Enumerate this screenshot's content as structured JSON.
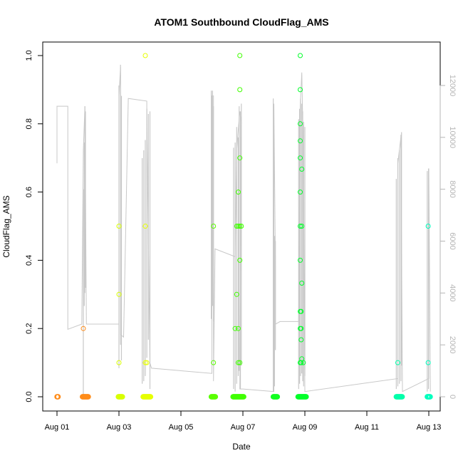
{
  "chart_data": {
    "type": "scatter",
    "title": "ATOM1 Southbound CloudFlag_AMS",
    "xlabel": "Date",
    "ylabel": "CloudFlag_AMS",
    "ylim": [
      0,
      1
    ],
    "yticks": [
      0.0,
      0.2,
      0.4,
      0.6,
      0.8,
      1.0
    ],
    "ytick_labels": [
      "0.0",
      "0.2",
      "0.4",
      "0.6",
      "0.8",
      "1.0"
    ],
    "x_axis": {
      "type": "date",
      "range_days": [
        0,
        12.3
      ],
      "ticks": [
        {
          "day": 0,
          "label": "Aug 01"
        },
        {
          "day": 2,
          "label": "Aug 03"
        },
        {
          "day": 4,
          "label": "Aug 05"
        },
        {
          "day": 6,
          "label": "Aug 07"
        },
        {
          "day": 8,
          "label": "Aug 09"
        },
        {
          "day": 10,
          "label": "Aug 11"
        },
        {
          "day": 12,
          "label": "Aug 13"
        }
      ]
    },
    "y2_axis": {
      "color": "#b5b5b5",
      "ylim": [
        0,
        12000
      ],
      "ticks": [
        0,
        2000,
        4000,
        6000,
        8000,
        10000,
        12000
      ],
      "tick_labels": [
        "0",
        "2000",
        "4000",
        "6000",
        "8000",
        "10000",
        "12000"
      ],
      "series_color": "#c8c8c8"
    },
    "grid": false,
    "legend": "none",
    "points": [
      {
        "x": 0.0,
        "y": 0.0
      },
      {
        "x": 0.02,
        "y": 0.0
      },
      {
        "x": 0.85,
        "y": 0.2
      },
      {
        "x": 0.85,
        "y": 0.0
      },
      {
        "x": 0.9,
        "y": 0.0
      },
      {
        "x": 0.95,
        "y": 0.0
      },
      {
        "x": 2.0,
        "y": 0.5
      },
      {
        "x": 2.0,
        "y": 0.3
      },
      {
        "x": 2.0,
        "y": 0.1
      },
      {
        "x": 2.0,
        "y": 0.0
      },
      {
        "x": 2.05,
        "y": 0.0
      },
      {
        "x": 2.85,
        "y": 1.0
      },
      {
        "x": 2.85,
        "y": 0.5
      },
      {
        "x": 2.85,
        "y": 0.1
      },
      {
        "x": 2.8,
        "y": 0.0
      },
      {
        "x": 2.9,
        "y": 0.1
      },
      {
        "x": 2.95,
        "y": 0.0
      },
      {
        "x": 3.0,
        "y": 0.0
      },
      {
        "x": 5.05,
        "y": 0.5
      },
      {
        "x": 5.05,
        "y": 0.1
      },
      {
        "x": 5.0,
        "y": 0.0
      },
      {
        "x": 5.1,
        "y": 0.0
      },
      {
        "x": 5.75,
        "y": 0.2
      },
      {
        "x": 5.8,
        "y": 0.5
      },
      {
        "x": 5.8,
        "y": 0.3
      },
      {
        "x": 5.85,
        "y": 0.6
      },
      {
        "x": 5.85,
        "y": 0.5
      },
      {
        "x": 5.85,
        "y": 0.2
      },
      {
        "x": 5.85,
        "y": 0.1
      },
      {
        "x": 5.9,
        "y": 1.0
      },
      {
        "x": 5.9,
        "y": 0.9
      },
      {
        "x": 5.9,
        "y": 0.7
      },
      {
        "x": 5.9,
        "y": 0.5
      },
      {
        "x": 5.9,
        "y": 0.4
      },
      {
        "x": 5.9,
        "y": 0.1
      },
      {
        "x": 5.95,
        "y": 0.5
      },
      {
        "x": 5.7,
        "y": 0.0
      },
      {
        "x": 5.8,
        "y": 0.0
      },
      {
        "x": 5.9,
        "y": 0.0
      },
      {
        "x": 6.0,
        "y": 0.0
      },
      {
        "x": 7.0,
        "y": 0.0
      },
      {
        "x": 7.05,
        "y": 0.0
      },
      {
        "x": 7.85,
        "y": 1.0
      },
      {
        "x": 7.85,
        "y": 0.9
      },
      {
        "x": 7.85,
        "y": 0.8
      },
      {
        "x": 7.85,
        "y": 0.75
      },
      {
        "x": 7.85,
        "y": 0.7
      },
      {
        "x": 7.85,
        "y": 0.6
      },
      {
        "x": 7.85,
        "y": 0.5
      },
      {
        "x": 7.85,
        "y": 0.4
      },
      {
        "x": 7.85,
        "y": 0.25
      },
      {
        "x": 7.85,
        "y": 0.2
      },
      {
        "x": 7.85,
        "y": 0.1
      },
      {
        "x": 7.9,
        "y": 0.667
      },
      {
        "x": 7.9,
        "y": 0.5
      },
      {
        "x": 7.9,
        "y": 0.333
      },
      {
        "x": 7.88,
        "y": 0.25
      },
      {
        "x": 7.88,
        "y": 0.2
      },
      {
        "x": 7.88,
        "y": 0.167
      },
      {
        "x": 7.88,
        "y": 0.1
      },
      {
        "x": 7.9,
        "y": 0.111
      },
      {
        "x": 7.95,
        "y": 0.1
      },
      {
        "x": 7.9,
        "y": 0.0
      },
      {
        "x": 8.0,
        "y": 0.0
      },
      {
        "x": 7.8,
        "y": 0.0
      },
      {
        "x": 11.0,
        "y": 0.1
      },
      {
        "x": 11.0,
        "y": 0.0
      },
      {
        "x": 11.1,
        "y": 0.0
      },
      {
        "x": 11.98,
        "y": 0.5
      },
      {
        "x": 11.98,
        "y": 0.1
      },
      {
        "x": 12.0,
        "y": 0.0
      }
    ],
    "clusters": [
      {
        "start": 0.0,
        "end": 0.04,
        "color": "#ff8c1a"
      },
      {
        "start": 0.82,
        "end": 1.02,
        "color": "#ff8c1a"
      },
      {
        "start": 1.98,
        "end": 2.12,
        "color": "#d8ff00"
      },
      {
        "start": 2.78,
        "end": 3.02,
        "color": "#e6ff00"
      },
      {
        "start": 4.98,
        "end": 5.12,
        "color": "#5aff00"
      },
      {
        "start": 5.68,
        "end": 6.03,
        "color": "#40ff00"
      },
      {
        "start": 6.98,
        "end": 7.12,
        "color": "#12ff20"
      },
      {
        "start": 7.78,
        "end": 8.05,
        "color": "#00ff2a"
      },
      {
        "start": 10.95,
        "end": 11.15,
        "color": "#00ffaa"
      },
      {
        "start": 11.95,
        "end": 12.05,
        "color": "#00ffbe"
      }
    ],
    "secondary_line": [
      [
        0.0,
        9000
      ],
      [
        0.0,
        11200
      ],
      [
        0.35,
        11200
      ],
      [
        0.35,
        2600
      ],
      [
        0.8,
        2800
      ],
      [
        0.85,
        9500
      ],
      [
        0.9,
        11200
      ],
      [
        0.95,
        2800
      ],
      [
        1.0,
        2800
      ],
      [
        2.0,
        2800
      ],
      [
        2.0,
        11600
      ],
      [
        2.05,
        12700
      ],
      [
        2.05,
        2400
      ],
      [
        2.15,
        2300
      ],
      [
        2.3,
        11500
      ],
      [
        2.9,
        11400
      ],
      [
        2.9,
        10800
      ],
      [
        3.0,
        1300
      ],
      [
        3.05,
        1100
      ],
      [
        5.0,
        900
      ],
      [
        5.0,
        11600
      ],
      [
        5.05,
        11600
      ],
      [
        5.05,
        600
      ],
      [
        5.1,
        5700
      ],
      [
        5.75,
        5400
      ],
      [
        5.8,
        9500
      ],
      [
        5.85,
        10300
      ],
      [
        5.9,
        11000
      ],
      [
        5.95,
        10600
      ],
      [
        5.9,
        300
      ],
      [
        6.0,
        300
      ],
      [
        7.0,
        200
      ],
      [
        7.0,
        11300
      ],
      [
        7.05,
        5000
      ],
      [
        7.05,
        2800
      ],
      [
        7.2,
        2900
      ],
      [
        7.8,
        2900
      ],
      [
        7.85,
        11200
      ],
      [
        7.9,
        12500
      ],
      [
        7.95,
        9500
      ],
      [
        8.0,
        200
      ],
      [
        11.0,
        700
      ],
      [
        11.0,
        9000
      ],
      [
        11.1,
        10000
      ],
      [
        11.15,
        200
      ],
      [
        12.0,
        700
      ],
      [
        12.0,
        8800
      ],
      [
        12.05,
        200
      ]
    ],
    "spikes": [
      [
        0.85,
        0,
        8000
      ],
      [
        0.88,
        3500,
        9800
      ],
      [
        0.9,
        4000,
        11200
      ],
      [
        0.92,
        4200,
        11000
      ],
      [
        2.0,
        1100,
        12000
      ],
      [
        2.05,
        2000,
        12800
      ],
      [
        2.08,
        1400,
        11600
      ],
      [
        2.75,
        500,
        9200
      ],
      [
        2.8,
        600,
        9500
      ],
      [
        2.85,
        800,
        9900
      ],
      [
        2.9,
        1500,
        11100
      ],
      [
        2.95,
        2200,
        10900
      ],
      [
        3.0,
        300,
        11000
      ],
      [
        4.98,
        3000,
        11800
      ],
      [
        5.02,
        3500,
        11800
      ],
      [
        5.05,
        2900,
        11200
      ],
      [
        5.7,
        300,
        9600
      ],
      [
        5.75,
        200,
        9800
      ],
      [
        5.8,
        500,
        10400
      ],
      [
        5.85,
        800,
        10000
      ],
      [
        5.88,
        1000,
        11200
      ],
      [
        5.92,
        300,
        11000
      ],
      [
        5.95,
        1200,
        11300
      ],
      [
        6.98,
        200,
        11500
      ],
      [
        7.02,
        400,
        6200
      ],
      [
        7.05,
        1800,
        6000
      ],
      [
        7.8,
        300,
        10700
      ],
      [
        7.83,
        500,
        11100
      ],
      [
        7.86,
        800,
        11500
      ],
      [
        7.9,
        900,
        11300
      ],
      [
        7.93,
        600,
        11000
      ],
      [
        7.96,
        400,
        10600
      ],
      [
        8.0,
        800,
        10400
      ],
      [
        10.95,
        300,
        8400
      ],
      [
        11.0,
        400,
        9200
      ],
      [
        11.05,
        500,
        9500
      ],
      [
        11.1,
        600,
        10100
      ],
      [
        11.12,
        1200,
        10200
      ],
      [
        11.95,
        200,
        8700
      ],
      [
        11.99,
        300,
        8800
      ]
    ]
  }
}
